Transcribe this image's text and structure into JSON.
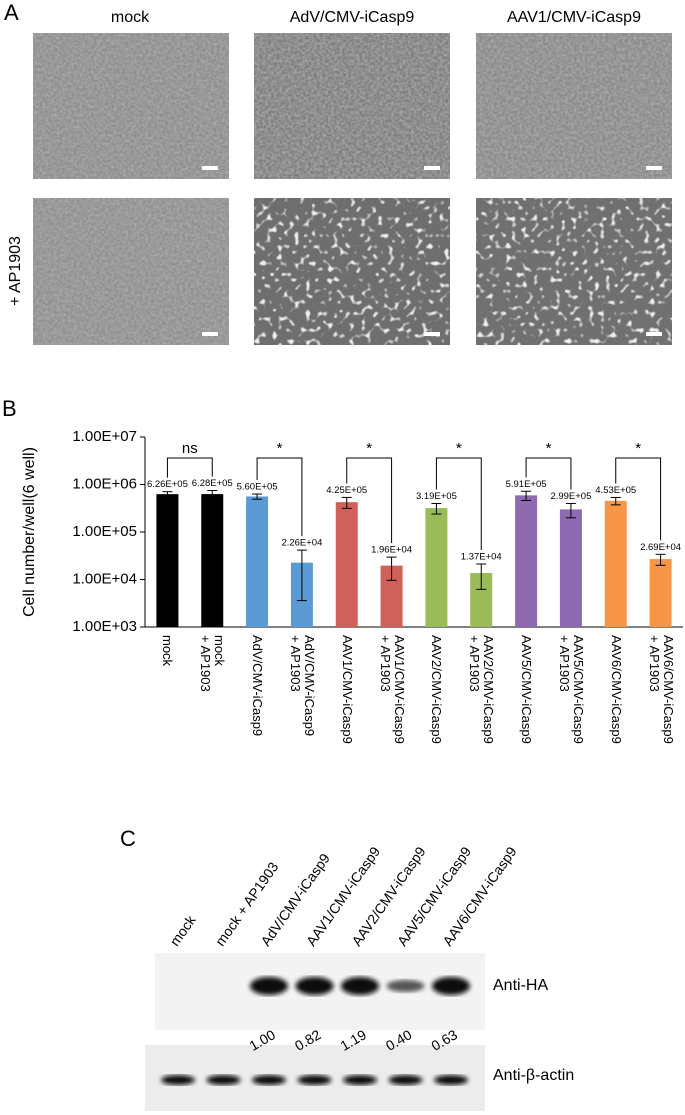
{
  "panel_a": {
    "label": "A",
    "columns": [
      "mock",
      "AdV/CMV-iCasp9",
      "AAV1/CMV-iCasp9"
    ],
    "row_label": "+ AP1903"
  },
  "panel_b": {
    "label": "B"
  },
  "chart_data": {
    "type": "bar",
    "ylabel": "Cell number/well(6 well)",
    "categories": [
      "mock",
      "mock\n+ AP1903",
      "AdV/CMV-iCasp9",
      "AdV/CMV-iCasp9\n+ AP1903",
      "AAV1/CMV-iCasp9",
      "AAV1/CMV-iCasp9\n+ AP1903",
      "AAV2/CMV-iCasp9",
      "AAV2/CMV-iCasp9\n+ AP1903",
      "AAV5/CMV-iCasp9",
      "AAV5/CMV-iCasp9\n+ AP1903",
      "AAV6/CMV-iCasp9",
      "AAV6/CMV-iCasp9\n+ AP1903"
    ],
    "values": [
      626000,
      628000,
      560000,
      22600,
      425000,
      19600,
      319000,
      13700,
      591000,
      299000,
      453000,
      26900
    ],
    "value_labels": [
      "6.26E+05",
      "6.28E+05",
      "5.60E+05",
      "2.26E+04",
      "4.25E+05",
      "1.96E+04",
      "3.19E+05",
      "1.37E+04",
      "5.91E+05",
      "2.99E+05",
      "4.53E+05",
      "2.69E+04"
    ],
    "errors": [
      80000,
      120000,
      70000,
      19000,
      110000,
      10000,
      80000,
      7500,
      130000,
      100000,
      80000,
      7000
    ],
    "colors": [
      "#000000",
      "#000000",
      "#5b9bd5",
      "#5b9bd5",
      "#d0605a",
      "#d0605a",
      "#9bbb59",
      "#9bbb59",
      "#8e6bb0",
      "#8e6bb0",
      "#f79646",
      "#f79646"
    ],
    "ylim": [
      1000,
      10000000
    ],
    "log_scale": true,
    "yticks": [
      {
        "value": 1000,
        "label": "1.00E+03"
      },
      {
        "value": 10000,
        "label": "1.00E+04"
      },
      {
        "value": 100000,
        "label": "1.00E+05"
      },
      {
        "value": 1000000,
        "label": "1.00E+06"
      },
      {
        "value": 10000000,
        "label": "1.00E+07"
      }
    ],
    "annotations": [
      "ns",
      "*",
      "*",
      "*",
      "*",
      "*"
    ]
  },
  "panel_c": {
    "label": "C",
    "lanes": [
      "mock",
      "mock + AP1903",
      "AdV/CMV-iCasp9",
      "AAV1/CMV-iCasp9",
      "AAV2/CMV-iCasp9",
      "AAV5/CMV-iCasp9",
      "AAV6/CMV-iCasp9"
    ],
    "blots": [
      "Anti-HA",
      "Anti-β-actin"
    ],
    "quantification": [
      "1.00",
      "0.82",
      "1.19",
      "0.40",
      "0.63"
    ]
  }
}
